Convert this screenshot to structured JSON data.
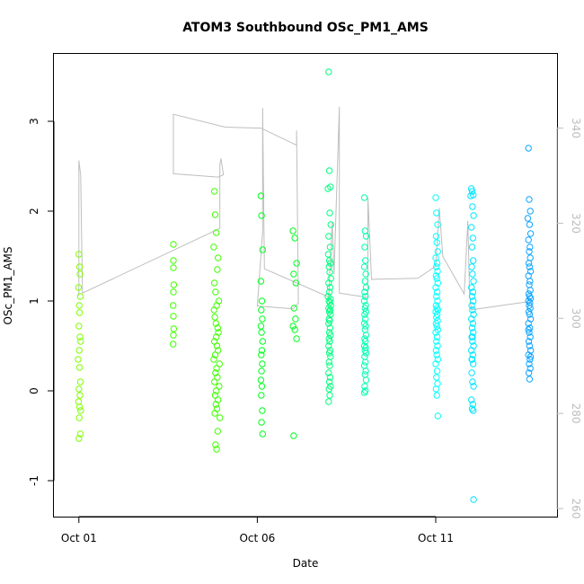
{
  "chart_data": {
    "type": "scatter",
    "title": "ATOM3 Southbound OSc_PM1_AMS",
    "xlabel": "Date",
    "ylabel": "OSc_PM1_AMS",
    "xlim": [
      0.3,
      14.4
    ],
    "ylim": [
      -1.4,
      3.75
    ],
    "x_ticks": [
      {
        "value": 1,
        "label": "Oct 01"
      },
      {
        "value": 6,
        "label": "Oct 06"
      },
      {
        "value": 11,
        "label": "Oct 11"
      }
    ],
    "y_ticks": [
      -1,
      0,
      1,
      2,
      3
    ],
    "y2_ticks": [
      260,
      280,
      300,
      320,
      340
    ],
    "y2lim": [
      258.3,
      355.6
    ],
    "grid": false,
    "legend": "none",
    "colors": {
      "line": "#bebebe",
      "right_axis": "#bdbdbd"
    },
    "secondary_line": [
      [
        1.0,
        304.7
      ],
      [
        1.0,
        333.2
      ],
      [
        1.05,
        330.1
      ],
      [
        1.1,
        305.3
      ],
      [
        4.95,
        318.9
      ],
      [
        4.95,
        332.3
      ],
      [
        4.98,
        333.6
      ],
      [
        5.05,
        330.2
      ],
      [
        4.9,
        329.7
      ],
      [
        3.65,
        330.4
      ],
      [
        3.65,
        342.9
      ],
      [
        5.1,
        340.2
      ],
      [
        6.1,
        340.0
      ],
      [
        7.1,
        336.4
      ],
      [
        7.1,
        339.5
      ],
      [
        7.15,
        303.2
      ],
      [
        7.0,
        302.0
      ],
      [
        6.0,
        302.6
      ],
      [
        6.15,
        318.2
      ],
      [
        6.15,
        344.2
      ],
      [
        6.2,
        310.4
      ],
      [
        8.0,
        304.5
      ],
      [
        8.1,
        320.2
      ],
      [
        8.15,
        309.3
      ],
      [
        8.3,
        344.5
      ],
      [
        8.3,
        305.3
      ],
      [
        9.1,
        304.4
      ],
      [
        9.1,
        325.4
      ],
      [
        9.2,
        308.2
      ],
      [
        10.5,
        308.4
      ],
      [
        11.0,
        311.0
      ],
      [
        11.1,
        323.2
      ],
      [
        11.2,
        313.0
      ],
      [
        11.8,
        305.1
      ],
      [
        11.9,
        320.5
      ],
      [
        11.95,
        304.8
      ],
      [
        12.0,
        301.8
      ],
      [
        13.6,
        303.5
      ]
    ],
    "series": [
      {
        "color": "#7fff00",
        "x": [
          1.0,
          1.02,
          1.03,
          0.99,
          1.04,
          1.01,
          1.02,
          1.0,
          1.03,
          1.05,
          1.01,
          0.98,
          1.02,
          1.04,
          1.0,
          1.03,
          0.99,
          1.02,
          1.05,
          1.01,
          1.04,
          1.0
        ],
        "y": [
          1.52,
          1.38,
          1.3,
          1.15,
          1.05,
          0.95,
          0.87,
          0.72,
          0.6,
          0.55,
          0.45,
          0.35,
          0.26,
          0.1,
          0.02,
          -0.05,
          -0.12,
          -0.18,
          -0.22,
          -0.3,
          -0.48,
          -0.53
        ]
      },
      {
        "color": "#3fff00",
        "x": [
          3.65,
          3.65,
          3.65,
          3.66,
          3.65,
          3.64,
          3.65,
          3.66,
          3.65,
          3.64,
          4.8,
          4.82,
          4.85,
          4.78,
          4.9,
          4.88,
          4.8,
          4.83,
          4.92,
          4.86,
          4.79,
          4.81,
          4.84,
          4.89,
          4.91,
          4.85,
          4.8,
          4.87,
          4.9,
          4.82,
          4.78,
          4.94,
          4.86,
          4.83,
          4.88,
          4.8,
          4.93,
          4.85,
          4.82,
          4.9,
          4.84,
          4.87,
          4.81,
          4.95,
          4.89,
          4.83,
          4.86
        ],
        "y": [
          1.63,
          1.45,
          1.37,
          1.18,
          1.1,
          0.95,
          0.83,
          0.69,
          0.62,
          0.52,
          2.22,
          1.96,
          1.76,
          1.6,
          1.48,
          1.35,
          1.2,
          1.1,
          1.0,
          0.95,
          0.9,
          0.82,
          0.75,
          0.7,
          0.65,
          0.6,
          0.55,
          0.5,
          0.45,
          0.4,
          0.35,
          0.3,
          0.25,
          0.2,
          0.15,
          0.1,
          0.05,
          0.0,
          -0.05,
          -0.1,
          -0.15,
          -0.2,
          -0.25,
          -0.3,
          -0.45,
          -0.6,
          -0.65
        ]
      },
      {
        "color": "#00ff1f",
        "x": [
          6.1,
          6.12,
          6.15,
          6.1,
          6.13,
          6.11,
          6.14,
          6.1,
          6.12,
          6.15,
          6.13,
          6.11,
          6.14,
          6.12,
          6.1,
          6.13,
          6.11,
          6.14,
          6.12,
          6.15,
          7.0,
          7.05,
          7.1,
          7.02,
          7.08,
          7.03,
          7.07,
          7.0,
          7.05,
          7.1,
          7.02
        ],
        "y": [
          2.17,
          1.95,
          1.57,
          1.22,
          1.0,
          0.9,
          0.8,
          0.72,
          0.65,
          0.55,
          0.45,
          0.4,
          0.3,
          0.22,
          0.12,
          0.05,
          -0.05,
          -0.22,
          -0.35,
          -0.48,
          1.78,
          1.7,
          1.42,
          1.3,
          1.2,
          0.92,
          0.8,
          0.72,
          0.68,
          0.58,
          -0.5
        ]
      },
      {
        "color": "#00ff7f",
        "x": [
          8.0,
          8.02,
          8.05,
          7.98,
          8.03,
          8.06,
          8.0,
          8.04,
          7.99,
          8.02,
          8.05,
          8.01,
          8.03,
          8.06,
          8.0,
          8.04,
          8.02,
          7.98,
          8.05,
          8.01,
          8.03,
          8.06,
          8.0,
          8.04,
          8.02,
          8.05,
          8.01,
          8.03,
          8.0,
          8.04,
          8.02,
          8.05,
          8.01,
          8.03,
          8.0,
          8.04,
          8.02,
          8.05,
          8.01,
          8.03,
          8.0,
          8.04,
          8.02,
          8.05,
          8.01,
          8.03,
          8.0
        ],
        "y": [
          3.55,
          2.45,
          2.27,
          2.25,
          1.98,
          1.85,
          1.72,
          1.6,
          1.52,
          1.45,
          1.42,
          1.38,
          1.32,
          1.25,
          1.2,
          1.15,
          1.1,
          1.05,
          1.02,
          1.0,
          0.98,
          0.95,
          0.92,
          0.9,
          0.88,
          0.85,
          0.8,
          0.78,
          0.75,
          0.7,
          0.65,
          0.62,
          0.58,
          0.55,
          0.5,
          0.45,
          0.42,
          0.38,
          0.32,
          0.28,
          0.2,
          0.15,
          0.1,
          0.05,
          0.02,
          -0.05,
          -0.12
        ]
      },
      {
        "color": "#00ffaf",
        "x": [
          9.0,
          9.02,
          9.05,
          9.01,
          9.03,
          9.0,
          9.04,
          9.02,
          9.05,
          9.01,
          9.03,
          9.0,
          9.04,
          9.02,
          9.05,
          9.01,
          9.03,
          9.0,
          9.04,
          9.02,
          9.05,
          9.01,
          9.03,
          9.0,
          9.04,
          9.02,
          9.05,
          9.01,
          9.03,
          9.0,
          9.04,
          9.02,
          9.05,
          9.01,
          9.03,
          9.0
        ],
        "y": [
          2.15,
          1.78,
          1.72,
          1.6,
          1.45,
          1.38,
          1.3,
          1.22,
          1.15,
          1.1,
          1.05,
          1.0,
          0.95,
          0.92,
          0.88,
          0.85,
          0.8,
          0.75,
          0.72,
          0.68,
          0.62,
          0.58,
          0.55,
          0.5,
          0.48,
          0.45,
          0.42,
          0.38,
          0.32,
          0.28,
          0.22,
          0.18,
          0.12,
          0.05,
          0.0,
          -0.02
        ]
      },
      {
        "color": "#00ffff",
        "x": [
          11.0,
          11.02,
          11.05,
          11.01,
          11.03,
          11.06,
          11.0,
          11.04,
          11.02,
          11.05,
          11.01,
          11.03,
          11.06,
          11.0,
          11.04,
          11.02,
          11.05,
          11.01,
          11.03,
          11.06,
          11.0,
          11.04,
          11.02,
          11.05,
          11.01,
          11.03,
          11.06,
          11.0,
          11.04,
          11.02,
          11.05,
          11.01,
          11.03,
          11.06,
          11.0,
          11.04,
          11.02,
          11.05,
          11.01,
          11.03,
          11.06
        ],
        "y": [
          2.15,
          1.98,
          1.85,
          1.72,
          1.65,
          1.55,
          1.48,
          1.42,
          1.38,
          1.33,
          1.28,
          1.25,
          1.2,
          1.15,
          1.1,
          1.05,
          1.0,
          0.95,
          0.92,
          0.9,
          0.88,
          0.85,
          0.82,
          0.78,
          0.75,
          0.72,
          0.68,
          0.65,
          0.6,
          0.55,
          0.5,
          0.45,
          0.4,
          0.35,
          0.3,
          0.22,
          0.15,
          0.08,
          0.02,
          -0.05,
          -0.28
        ]
      },
      {
        "color": "#00e5ff",
        "x": [
          12.0,
          12.02,
          12.05,
          11.98,
          12.03,
          12.06,
          12.0,
          12.04,
          12.02,
          12.05,
          12.01,
          12.03,
          12.06,
          12.0,
          12.04,
          12.02,
          12.05,
          12.01,
          12.03,
          12.06,
          12.0,
          12.04,
          12.02,
          12.05,
          12.01,
          12.03,
          12.06,
          12.0,
          12.04,
          12.02,
          12.05,
          12.01,
          12.03,
          12.06,
          12.0,
          12.04,
          12.02,
          12.05,
          12.01,
          12.03,
          12.06
        ],
        "y": [
          2.25,
          2.22,
          2.18,
          2.17,
          2.05,
          1.95,
          1.82,
          1.7,
          1.6,
          1.45,
          1.38,
          1.3,
          1.22,
          1.15,
          1.1,
          1.05,
          1.0,
          0.95,
          0.9,
          0.85,
          0.8,
          0.75,
          0.7,
          0.65,
          0.6,
          0.55,
          0.5,
          0.45,
          0.4,
          0.35,
          0.3,
          0.2,
          0.1,
          0.05,
          -0.1,
          -0.15,
          -0.2,
          -0.22,
          0.35,
          0.6,
          -1.21
        ]
      },
      {
        "color": "#0fa5ff",
        "x": [
          13.6,
          13.62,
          13.65,
          13.58,
          13.63,
          13.66,
          13.6,
          13.64,
          13.62,
          13.65,
          13.61,
          13.63,
          13.66,
          13.6,
          13.64,
          13.62,
          13.65,
          13.61,
          13.63,
          13.66,
          13.6,
          13.64,
          13.62,
          13.65,
          13.61,
          13.63,
          13.66,
          13.6,
          13.64,
          13.62,
          13.65,
          13.61,
          13.63,
          13.66,
          13.6,
          13.64,
          13.62,
          13.65,
          13.61,
          13.63,
          13.66,
          13.6
        ],
        "y": [
          2.7,
          2.13,
          2.0,
          1.92,
          1.85,
          1.75,
          1.68,
          1.6,
          1.55,
          1.48,
          1.42,
          1.38,
          1.33,
          1.28,
          1.22,
          1.18,
          1.12,
          1.08,
          1.05,
          1.03,
          1.0,
          0.98,
          0.95,
          0.92,
          0.88,
          0.85,
          0.8,
          0.75,
          0.7,
          0.65,
          0.6,
          0.55,
          0.5,
          0.45,
          0.4,
          0.35,
          0.3,
          0.25,
          0.2,
          0.13,
          0.38,
          0.68
        ]
      }
    ]
  }
}
